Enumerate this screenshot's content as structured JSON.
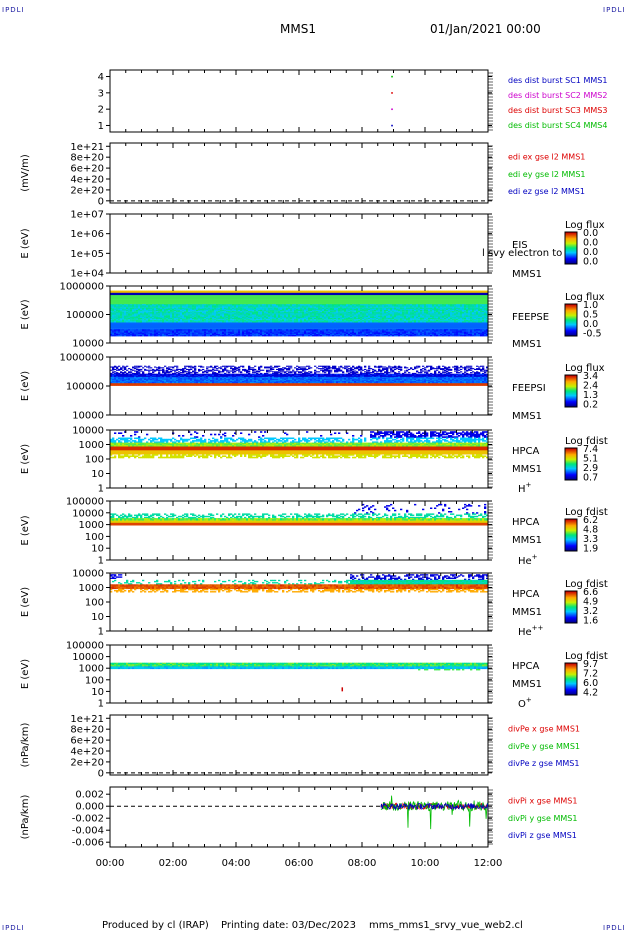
{
  "header": {
    "mission": "MMS1",
    "date": "01/Jan/2021 00:00",
    "logo": "IPDLI"
  },
  "footer": {
    "produced_by": "Produced by cl (IRAP)",
    "printing_date": "Printing date: 03/Dec/2023",
    "script": "mms_mms1_srvy_vue_web2.cl"
  },
  "colors": {
    "mms1": "#0000c0",
    "mms2": "#cc00cc",
    "mms3": "#dd0000",
    "mms4": "#00bb00",
    "frame": "#000000"
  },
  "x_axis": {
    "start": "00:00",
    "end": "12:00",
    "ticks": [
      "00:00",
      "02:00",
      "04:00",
      "06:00",
      "08:00",
      "10:00",
      "12:00"
    ],
    "tick_hours": [
      0,
      2,
      4,
      6,
      8,
      10,
      12
    ]
  },
  "chart_data": [
    {
      "type": "scatter",
      "id": "burst",
      "ylim": [
        0.6,
        4.4
      ],
      "ytick_values": [
        1,
        2,
        3,
        4
      ],
      "ytick_labels": [
        "1",
        "2",
        "3",
        "4"
      ],
      "series": [
        {
          "name": "des dist burst SC1 MMS1",
          "color": "#0000c0",
          "points": [
            [
              8.95,
              1
            ]
          ]
        },
        {
          "name": "des dist burst SC2 MMS2",
          "color": "#cc00cc",
          "points": [
            [
              8.95,
              2
            ]
          ]
        },
        {
          "name": "des dist burst SC3 MMS3",
          "color": "#dd0000",
          "points": [
            [
              8.95,
              3
            ]
          ]
        },
        {
          "name": "des dist burst SC4 MMS4",
          "color": "#00bb00",
          "points": [
            [
              8.95,
              4
            ]
          ]
        }
      ]
    },
    {
      "type": "line",
      "id": "edi",
      "ylabel": "(mV/m)",
      "ylim": [
        -4e+19,
        1.06e+21
      ],
      "ytick_values": [
        0,
        2e+20,
        4e+20,
        6e+20,
        8e+20,
        1e+21
      ],
      "ytick_labels": [
        "0",
        "2e+20",
        "4e+20",
        "6e+20",
        "8e+20",
        "1e+21"
      ],
      "zero_line": true,
      "series": [
        {
          "name": "edi ex gse l2 MMS1",
          "color": "#dd0000",
          "values": []
        },
        {
          "name": "edi ey gse l2 MMS1",
          "color": "#00bb00",
          "values": []
        },
        {
          "name": "edi ez gse l2 MMS1",
          "color": "#0000c0",
          "values": []
        }
      ]
    },
    {
      "type": "heatmap",
      "id": "eis",
      "ylabel": "E (eV)",
      "ytick_labels": [
        "1e+07",
        "1e+06",
        "1e+05",
        "1e+04"
      ],
      "y_scale": "log",
      "labels": [
        "EIS",
        "MMS1"
      ],
      "overlay_label": "l svy electron to",
      "colorbar": {
        "title": "Log flux",
        "values": [
          "0.0",
          "0.0",
          "0.0",
          "0.0"
        ]
      }
    },
    {
      "type": "heatmap",
      "id": "feepse",
      "ylabel": "E (eV)",
      "ytick_labels": [
        "1000000",
        "100000",
        "10000"
      ],
      "y_scale": "log",
      "labels": [
        "FEEPSE",
        "MMS1"
      ],
      "colorbar": {
        "title": "Log flux",
        "values": [
          "1.0",
          "0.5",
          "0.0",
          "-0.5"
        ]
      }
    },
    {
      "type": "heatmap",
      "id": "feepsi",
      "ylabel": "E (eV)",
      "ytick_labels": [
        "1000000",
        "100000",
        "10000"
      ],
      "y_scale": "log",
      "labels": [
        "FEEPSI",
        "MMS1"
      ],
      "colorbar": {
        "title": "Log flux",
        "values": [
          "3.4",
          "2.4",
          "1.3",
          "0.2"
        ]
      }
    },
    {
      "type": "heatmap",
      "id": "hpca_h",
      "ylabel": "E (eV)",
      "ytick_labels": [
        "10000",
        "1000",
        "100",
        "10",
        "1"
      ],
      "y_scale": "log",
      "labels": [
        "HPCA",
        "MMS1"
      ],
      "species": "H",
      "species_sup": "+",
      "colorbar": {
        "title": "Log fdist",
        "values": [
          "7.4",
          "5.1",
          "2.9",
          "0.7"
        ]
      }
    },
    {
      "type": "heatmap",
      "id": "hpca_he",
      "ylabel": "E (eV)",
      "ytick_labels": [
        "100000",
        "10000",
        "1000",
        "100",
        "10",
        "1"
      ],
      "y_scale": "log",
      "labels": [
        "HPCA",
        "MMS1"
      ],
      "species": "He",
      "species_sup": "+",
      "colorbar": {
        "title": "Log fdist",
        "values": [
          "6.2",
          "4.8",
          "3.3",
          "1.9"
        ]
      }
    },
    {
      "type": "heatmap",
      "id": "hpca_he2",
      "ylabel": "E (eV)",
      "ytick_labels": [
        "10000",
        "1000",
        "100",
        "10",
        "1"
      ],
      "y_scale": "log",
      "labels": [
        "HPCA",
        "MMS1"
      ],
      "species": "He",
      "species_sup": "++",
      "colorbar": {
        "title": "Log fdist",
        "values": [
          "6.6",
          "4.9",
          "3.2",
          "1.6"
        ]
      }
    },
    {
      "type": "heatmap",
      "id": "hpca_o",
      "ylabel": "E (eV)",
      "ytick_labels": [
        "100000",
        "10000",
        "1000",
        "100",
        "10",
        "1"
      ],
      "y_scale": "log",
      "labels": [
        "HPCA",
        "MMS1"
      ],
      "species": "O",
      "species_sup": "+",
      "colorbar": {
        "title": "Log fdist",
        "values": [
          "9.7",
          "7.2",
          "6.0",
          "4.2"
        ]
      }
    },
    {
      "type": "line",
      "id": "divpe",
      "ylabel": "(nPa/km)",
      "ylim": [
        -4e+19,
        1.06e+21
      ],
      "ytick_values": [
        0,
        2e+20,
        4e+20,
        6e+20,
        8e+20,
        1e+21
      ],
      "ytick_labels": [
        "0",
        "2e+20",
        "4e+20",
        "6e+20",
        "8e+20",
        "1e+21"
      ],
      "zero_line": true,
      "series": [
        {
          "name": "divPe x gse MMS1",
          "color": "#dd0000",
          "values": []
        },
        {
          "name": "divPe y gse MMS1",
          "color": "#00bb00",
          "values": []
        },
        {
          "name": "divPe z gse MMS1",
          "color": "#0000c0",
          "values": []
        }
      ]
    },
    {
      "type": "line",
      "id": "divpi",
      "ylabel": "(nPa/km)",
      "ylim": [
        -0.0068,
        0.0032
      ],
      "ytick_values": [
        0.002,
        0,
        -0.002,
        -0.004,
        -0.006
      ],
      "ytick_labels": [
        "0.002",
        "0.000",
        "-0.002",
        "-0.004",
        "-0.006"
      ],
      "zero_line": true,
      "data_start_hour": 8.6,
      "series": [
        {
          "name": "divPi x gse MMS1",
          "color": "#dd0000",
          "values": []
        },
        {
          "name": "divPi y gse MMS1",
          "color": "#00bb00",
          "values": []
        },
        {
          "name": "divPi z gse MMS1",
          "color": "#0000c0",
          "values": []
        }
      ]
    }
  ]
}
